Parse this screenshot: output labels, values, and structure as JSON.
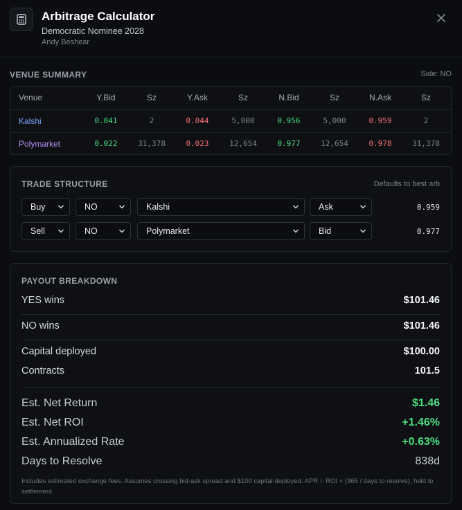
{
  "header": {
    "title": "Arbitrage Calculator",
    "subtitle": "Democratic Nominee 2028",
    "candidate": "Andy Beshear",
    "icon": "calculator-icon",
    "close_icon": "close-icon"
  },
  "venue_summary": {
    "label": "VENUE SUMMARY",
    "side_label": "Side: NO",
    "columns": [
      "Venue",
      "Y.Bid",
      "Sz",
      "Y.Ask",
      "Sz",
      "N.Bid",
      "Sz",
      "N.Ask",
      "Sz"
    ],
    "rows": [
      {
        "venue": "Kalshi",
        "y_bid": "0.041",
        "y_bid_sz": "2",
        "y_ask": "0.044",
        "y_ask_sz": "5,000",
        "n_bid": "0.956",
        "n_bid_sz": "5,000",
        "n_ask": "0.959",
        "n_ask_sz": "2"
      },
      {
        "venue": "Polymarket",
        "y_bid": "0.022",
        "y_bid_sz": "31,378",
        "y_ask": "0.023",
        "y_ask_sz": "12,654",
        "n_bid": "0.977",
        "n_bid_sz": "12,654",
        "n_ask": "0.978",
        "n_ask_sz": "31,378"
      }
    ]
  },
  "trade_structure": {
    "label": "TRADE STRUCTURE",
    "note": "Defaults to best arb",
    "legs": [
      {
        "action": "Buy",
        "side": "NO",
        "venue": "Kalshi",
        "book": "Ask",
        "price": "0.959"
      },
      {
        "action": "Sell",
        "side": "NO",
        "venue": "Polymarket",
        "book": "Bid",
        "price": "0.977"
      }
    ]
  },
  "payout": {
    "label": "PAYOUT BREAKDOWN",
    "yes_wins_label": "YES wins",
    "yes_wins_value": "$101.46",
    "no_wins_label": "NO wins",
    "no_wins_value": "$101.46",
    "capital_label": "Capital deployed",
    "capital_value": "$100.00",
    "contracts_label": "Contracts",
    "contracts_value": "101.5",
    "net_return_label": "Est. Net Return",
    "net_return_value": "$1.46",
    "roi_label": "Est. Net ROI",
    "roi_value": "+1.46%",
    "apr_label": "Est. Annualized Rate",
    "apr_value": "+0.63%",
    "days_label": "Days to Resolve",
    "days_value": "838d",
    "footnote": "Includes estimated exchange fees. Assumes crossing bid-ask spread and $100 capital deployed. APR = ROI × (365 / days to resolve), held to settlement."
  },
  "colors": {
    "positive": "#4ade80",
    "negative": "#f87171",
    "kalshi": "#7aa2f7",
    "polymarket": "#b08cf0",
    "background": "#0b0d11"
  }
}
